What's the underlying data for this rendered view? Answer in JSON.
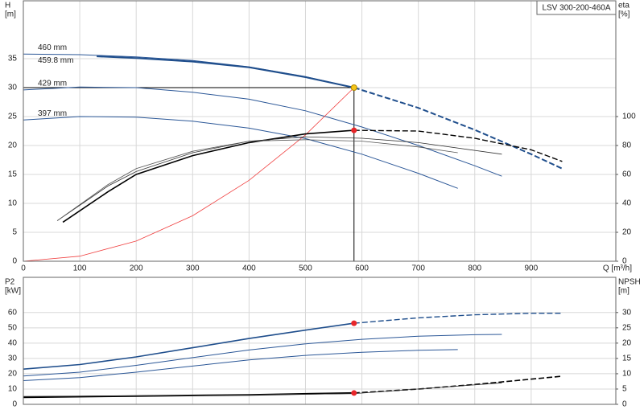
{
  "title": "LSV 300-200-460A",
  "chart_data": [
    {
      "type": "line",
      "x_label": "Q [m³/h]",
      "y_label": [
        "H",
        "[m]"
      ],
      "y2_label": [
        "eta",
        "[%]"
      ],
      "xlim": [
        0,
        1050
      ],
      "xticks": [
        0,
        100,
        200,
        300,
        400,
        500,
        600,
        700,
        800,
        900
      ],
      "ylim": [
        0,
        45
      ],
      "yticks": [
        0,
        5,
        10,
        15,
        20,
        25,
        30,
        35
      ],
      "y2lim": [
        0,
        180
      ],
      "y2ticks": [
        0,
        20,
        40,
        60,
        80,
        100
      ],
      "grid": true,
      "series": [
        {
          "name": "460 mm",
          "color": "#2b5797",
          "width": 1,
          "style": "solid",
          "axis": "y",
          "x": [
            0,
            100,
            200,
            300,
            400,
            500,
            586
          ],
          "values": [
            35.8,
            35.7,
            35.3,
            34.7,
            33.6,
            31.9,
            30
          ]
        },
        {
          "name": "459.8 mm",
          "color": "#1f4e8c",
          "width": 2,
          "style": "solid",
          "axis": "y",
          "x": [
            130,
            200,
            300,
            400,
            500,
            586
          ],
          "values": [
            35.4,
            35.1,
            34.5,
            33.5,
            31.8,
            30
          ]
        },
        {
          "color": "#1f4e8c",
          "width": 2,
          "style": "dashed",
          "axis": "y",
          "x": [
            586,
            700,
            800,
            900,
            955
          ],
          "values": [
            30,
            26.5,
            22.7,
            18.5,
            16
          ]
        },
        {
          "name": "429 mm",
          "color": "#2b5797",
          "width": 1,
          "style": "solid",
          "axis": "y",
          "x": [
            0,
            100,
            200,
            300,
            400,
            500,
            600,
            700,
            800,
            848
          ],
          "values": [
            29.6,
            30.1,
            30,
            29.2,
            28,
            26,
            23.2,
            20,
            16.5,
            14.7
          ]
        },
        {
          "name": "397 mm",
          "color": "#2b5797",
          "width": 1,
          "style": "solid",
          "axis": "y",
          "x": [
            0,
            100,
            200,
            300,
            400,
            500,
            600,
            700,
            770
          ],
          "values": [
            24.4,
            25,
            24.9,
            24.2,
            23,
            21.2,
            18.5,
            15.2,
            12.6
          ]
        },
        {
          "color": "#f04040",
          "width": 0.8,
          "style": "solid",
          "axis": "y",
          "x": [
            0,
            100,
            200,
            300,
            400,
            500,
            586
          ],
          "values": [
            0,
            0.87,
            3.49,
            7.86,
            13.98,
            21.84,
            30
          ]
        },
        {
          "color": "#000000",
          "width": 1.6,
          "style": "solid",
          "axis": "y2",
          "x": [
            70,
            150,
            200,
            300,
            400,
            500,
            586
          ],
          "values": [
            27,
            48,
            60,
            73,
            82,
            88,
            90.5
          ]
        },
        {
          "color": "#000000",
          "width": 1.4,
          "style": "dashed",
          "axis": "y2",
          "x": [
            586,
            700,
            800,
            900,
            955
          ],
          "values": [
            90.5,
            90,
            85,
            77,
            69
          ]
        },
        {
          "color": "#333333",
          "width": 0.8,
          "style": "solid",
          "axis": "y2",
          "x": [
            60,
            150,
            200,
            300,
            400,
            500,
            600,
            700,
            848
          ],
          "values": [
            28,
            52,
            62,
            75,
            83,
            86,
            85,
            82,
            74
          ]
        },
        {
          "color": "#555555",
          "width": 0.8,
          "style": "solid",
          "axis": "y2",
          "x": [
            60,
            150,
            200,
            300,
            400,
            500,
            600,
            700,
            770
          ],
          "values": [
            28,
            53,
            64,
            76,
            83,
            84,
            83,
            79,
            75
          ]
        }
      ],
      "points": [
        {
          "x": 586,
          "value": 30,
          "color": "#f5c518",
          "axis": "y",
          "guides": true
        },
        {
          "x": 586,
          "value": 90.5,
          "color": "#e8262a",
          "axis": "y2",
          "guides": false
        }
      ]
    },
    {
      "type": "line",
      "y_label": [
        "P2",
        "[kW]"
      ],
      "y2_label": [
        "NPSH",
        "[m]"
      ],
      "xlim": [
        0,
        1050
      ],
      "ylim": [
        0,
        83
      ],
      "yticks": [
        0,
        10,
        20,
        30,
        40,
        50,
        60
      ],
      "y2lim": [
        0,
        41.5
      ],
      "y2ticks": [
        0,
        5,
        10,
        15,
        20,
        25,
        30
      ],
      "grid": true,
      "series": [
        {
          "color": "#1f4e8c",
          "width": 1.6,
          "style": "solid",
          "axis": "y",
          "x": [
            0,
            100,
            200,
            300,
            400,
            500,
            586
          ],
          "values": [
            23,
            26,
            31,
            37,
            43,
            48.5,
            53
          ]
        },
        {
          "color": "#1f4e8c",
          "width": 1.4,
          "style": "dashed",
          "axis": "y",
          "x": [
            586,
            700,
            800,
            900,
            955
          ],
          "values": [
            53,
            56.5,
            58.5,
            59.5,
            59.5
          ]
        },
        {
          "color": "#2b5797",
          "width": 1,
          "style": "solid",
          "axis": "y",
          "x": [
            0,
            100,
            200,
            300,
            400,
            500,
            600,
            700,
            800,
            848
          ],
          "values": [
            18.5,
            21,
            25.5,
            30.5,
            35.5,
            39.5,
            42.5,
            44.5,
            45.5,
            45.7
          ]
        },
        {
          "color": "#2b5797",
          "width": 1,
          "style": "solid",
          "axis": "y",
          "x": [
            0,
            100,
            200,
            300,
            400,
            500,
            600,
            700,
            770
          ],
          "values": [
            15.5,
            17.5,
            21,
            25,
            29,
            32,
            34,
            35.3,
            35.8
          ]
        },
        {
          "color": "#000000",
          "width": 2,
          "style": "solid",
          "axis": "y2",
          "x": [
            0,
            200,
            400,
            586
          ],
          "values": [
            2.3,
            2.7,
            3.1,
            3.7
          ]
        },
        {
          "color": "#000000",
          "width": 1.6,
          "style": "dashed",
          "axis": "y2",
          "x": [
            586,
            700,
            800,
            955
          ],
          "values": [
            3.7,
            5,
            6.5,
            9.2
          ]
        },
        {
          "color": "#333333",
          "width": 0.8,
          "style": "solid",
          "axis": "y2",
          "x": [
            0,
            300,
            586,
            848
          ],
          "values": [
            2.6,
            2.9,
            3.5,
            7
          ]
        }
      ],
      "points": [
        {
          "x": 586,
          "value": 53,
          "color": "#e8262a",
          "axis": "y",
          "guides": false
        },
        {
          "x": 586,
          "value": 3.7,
          "color": "#e8262a",
          "axis": "y2",
          "guides": false
        }
      ]
    }
  ]
}
